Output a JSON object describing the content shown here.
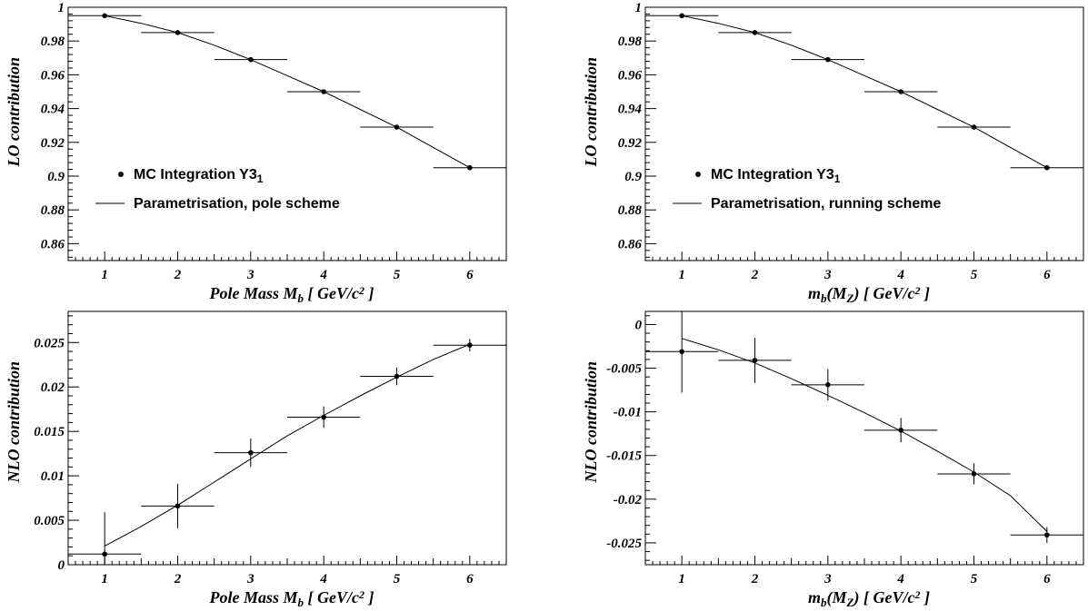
{
  "chart_data": [
    {
      "type": "scatter",
      "panel": "top-left",
      "ylabel": "LO contribution",
      "xlabel": {
        "pre": "Pole Mass M",
        "sub": "b",
        "post": " [ GeV/c",
        "sup": "2",
        "end": " ]"
      },
      "xlim": [
        0.5,
        6.5
      ],
      "ylim": [
        0.85,
        1.0
      ],
      "xticks": [
        1,
        2,
        3,
        4,
        5,
        6
      ],
      "yticks": [
        0.86,
        0.88,
        0.9,
        0.92,
        0.94,
        0.96,
        0.98,
        1
      ],
      "ytick_labels": [
        "0.86",
        "0.88",
        "0.9",
        "0.92",
        "0.94",
        "0.96",
        "0.98",
        "1"
      ],
      "points": {
        "x": [
          1,
          2,
          3,
          4,
          5,
          6
        ],
        "y": [
          0.995,
          0.985,
          0.969,
          0.95,
          0.929,
          0.905
        ],
        "xerr": 0.5,
        "yerr": [
          0,
          0,
          0,
          0,
          0,
          0
        ]
      },
      "curve": {
        "x": [
          1,
          1.5,
          2,
          2.5,
          3,
          3.5,
          4,
          4.5,
          5,
          5.5,
          6
        ],
        "y": [
          0.995,
          0.9905,
          0.985,
          0.9775,
          0.969,
          0.9595,
          0.95,
          0.9395,
          0.929,
          0.917,
          0.905
        ]
      },
      "legend": {
        "position": "middle-left",
        "marker_label": {
          "pre": "MC Integration  Y3",
          "sub": "1"
        },
        "line_label": "Parametrisation, pole scheme"
      }
    },
    {
      "type": "scatter",
      "panel": "top-right",
      "ylabel": "LO contribution",
      "xlabel": {
        "pre": "m",
        "sub": "b",
        "mid": "(M",
        "sub2": "Z",
        "post": ") [ GeV/c",
        "sup": "2",
        "end": " ]"
      },
      "xlim": [
        0.5,
        6.5
      ],
      "ylim": [
        0.85,
        1.0
      ],
      "xticks": [
        1,
        2,
        3,
        4,
        5,
        6
      ],
      "yticks": [
        0.86,
        0.88,
        0.9,
        0.92,
        0.94,
        0.96,
        0.98,
        1
      ],
      "ytick_labels": [
        "0.86",
        "0.88",
        "0.9",
        "0.92",
        "0.94",
        "0.96",
        "0.98",
        "1"
      ],
      "points": {
        "x": [
          1,
          2,
          3,
          4,
          5,
          6
        ],
        "y": [
          0.995,
          0.985,
          0.969,
          0.95,
          0.929,
          0.905
        ],
        "xerr": 0.5,
        "yerr": [
          0,
          0,
          0,
          0,
          0,
          0
        ]
      },
      "curve": {
        "x": [
          1,
          1.5,
          2,
          2.5,
          3,
          3.5,
          4,
          4.5,
          5,
          5.5,
          6
        ],
        "y": [
          0.995,
          0.9905,
          0.985,
          0.9775,
          0.969,
          0.9595,
          0.95,
          0.9395,
          0.929,
          0.917,
          0.905
        ]
      },
      "legend": {
        "position": "middle-left",
        "marker_label": {
          "pre": "MC Integration  Y3",
          "sub": "1"
        },
        "line_label": "Parametrisation, running scheme"
      }
    },
    {
      "type": "scatter",
      "panel": "bottom-left",
      "ylabel": "NLO contribution",
      "xlabel": {
        "pre": "Pole Mass M",
        "sub": "b",
        "post": " [ GeV/c",
        "sup": "2",
        "end": " ]"
      },
      "xlim": [
        0.5,
        6.5
      ],
      "ylim": [
        0.0,
        0.0285
      ],
      "xticks": [
        1,
        2,
        3,
        4,
        5,
        6
      ],
      "yticks": [
        0,
        0.005,
        0.01,
        0.015,
        0.02,
        0.025
      ],
      "ytick_labels": [
        "0",
        "0.005",
        "0.01",
        "0.015",
        "0.02",
        "0.025"
      ],
      "points": {
        "x": [
          1,
          2,
          3,
          4,
          5,
          6
        ],
        "y": [
          0.0012,
          0.0066,
          0.0126,
          0.0166,
          0.0212,
          0.0247
        ],
        "xerr": 0.5,
        "yerr": [
          0.0047,
          0.0025,
          0.0016,
          0.0012,
          0.001,
          0.0007
        ]
      },
      "curve": {
        "x": [
          1,
          1.5,
          2,
          2.5,
          3,
          3.5,
          4,
          4.5,
          5,
          5.5,
          6
        ],
        "y": [
          0.0021,
          0.0043,
          0.0067,
          0.0093,
          0.0119,
          0.0145,
          0.0168,
          0.019,
          0.0211,
          0.0231,
          0.0248
        ]
      }
    },
    {
      "type": "scatter",
      "panel": "bottom-right",
      "ylabel": "NLO contribution",
      "xlabel": {
        "pre": "m",
        "sub": "b",
        "mid": "(M",
        "sub2": "Z",
        "post": ") [ GeV/c",
        "sup": "2",
        "end": " ]"
      },
      "xlim": [
        0.5,
        6.5
      ],
      "ylim": [
        -0.0275,
        0.0015
      ],
      "xticks": [
        1,
        2,
        3,
        4,
        5,
        6
      ],
      "yticks": [
        -0.025,
        -0.02,
        -0.015,
        -0.01,
        -0.005,
        0
      ],
      "ytick_labels": [
        "-0.025",
        "-0.02",
        "-0.015",
        "-0.01",
        "-0.005",
        "0"
      ],
      "points": {
        "x": [
          1,
          2,
          3,
          4,
          5,
          6
        ],
        "y": [
          -0.0031,
          -0.0041,
          -0.0069,
          -0.0121,
          -0.0171,
          -0.0241
        ],
        "xerr": 0.5,
        "yerr": [
          0.0047,
          0.0026,
          0.0018,
          0.0014,
          0.0012,
          0.0009
        ]
      },
      "curve": {
        "x": [
          1,
          1.5,
          2,
          2.5,
          3,
          3.5,
          4,
          4.5,
          5,
          5.5,
          6
        ],
        "y": [
          -0.0016,
          -0.0029,
          -0.0044,
          -0.0062,
          -0.0081,
          -0.0101,
          -0.0122,
          -0.0145,
          -0.0169,
          -0.0196,
          -0.0237
        ]
      }
    }
  ]
}
